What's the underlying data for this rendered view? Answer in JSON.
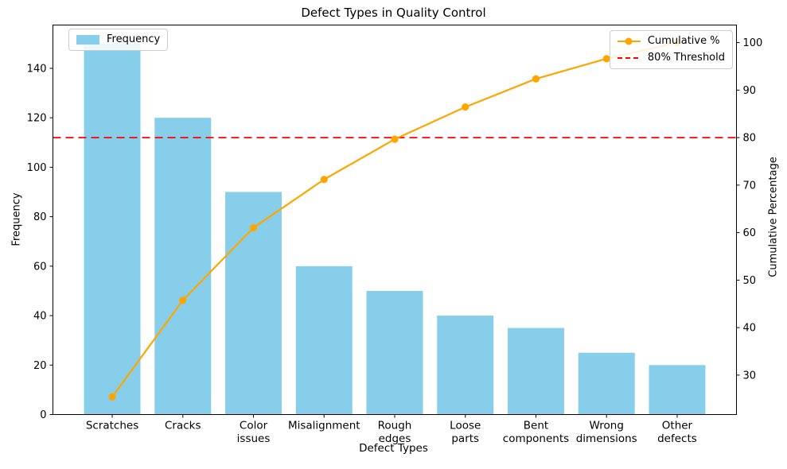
{
  "chart_data": {
    "type": "bar",
    "subtype": "pareto (bar + cumulative line + threshold)",
    "title": "Defect Types in Quality Control",
    "xlabel": "Defect Types",
    "ylabel_left": "Frequency",
    "ylabel_right": "Cumulative Percentage",
    "categories": [
      "Scratches",
      "Cracks",
      "Color\nissues",
      "Misalignment",
      "Rough\nedges",
      "Loose\nparts",
      "Bent\ncomponents",
      "Wrong\ndimensions",
      "Other\ndefects"
    ],
    "series": [
      {
        "name": "Frequency",
        "type": "bar",
        "axis": "left",
        "values": [
          150,
          120,
          90,
          60,
          50,
          40,
          35,
          25,
          20
        ]
      },
      {
        "name": "Cumulative %",
        "type": "line",
        "axis": "right",
        "values": [
          25.42,
          45.76,
          61.02,
          71.19,
          79.66,
          86.44,
          92.37,
          96.61,
          100.0
        ]
      }
    ],
    "threshold": {
      "label": "80% Threshold",
      "value": 80,
      "axis": "right"
    },
    "y_left_ticks": [
      0,
      20,
      40,
      60,
      80,
      100,
      120,
      140
    ],
    "y_right_ticks": [
      30,
      40,
      50,
      60,
      70,
      80,
      90,
      100
    ],
    "ylim_left": [
      0,
      157.5
    ],
    "ylim_right": [
      21.7,
      103.7
    ],
    "grid": false,
    "legend_positions": {
      "frequency": "upper left",
      "cumulative": "upper right"
    },
    "colors": {
      "bar": "#87CEEB",
      "line": "#FFA500",
      "threshold": "#FF0000",
      "axis": "#000000",
      "text": "#000000",
      "legend_border": "#cccccc",
      "background": "#ffffff"
    }
  }
}
